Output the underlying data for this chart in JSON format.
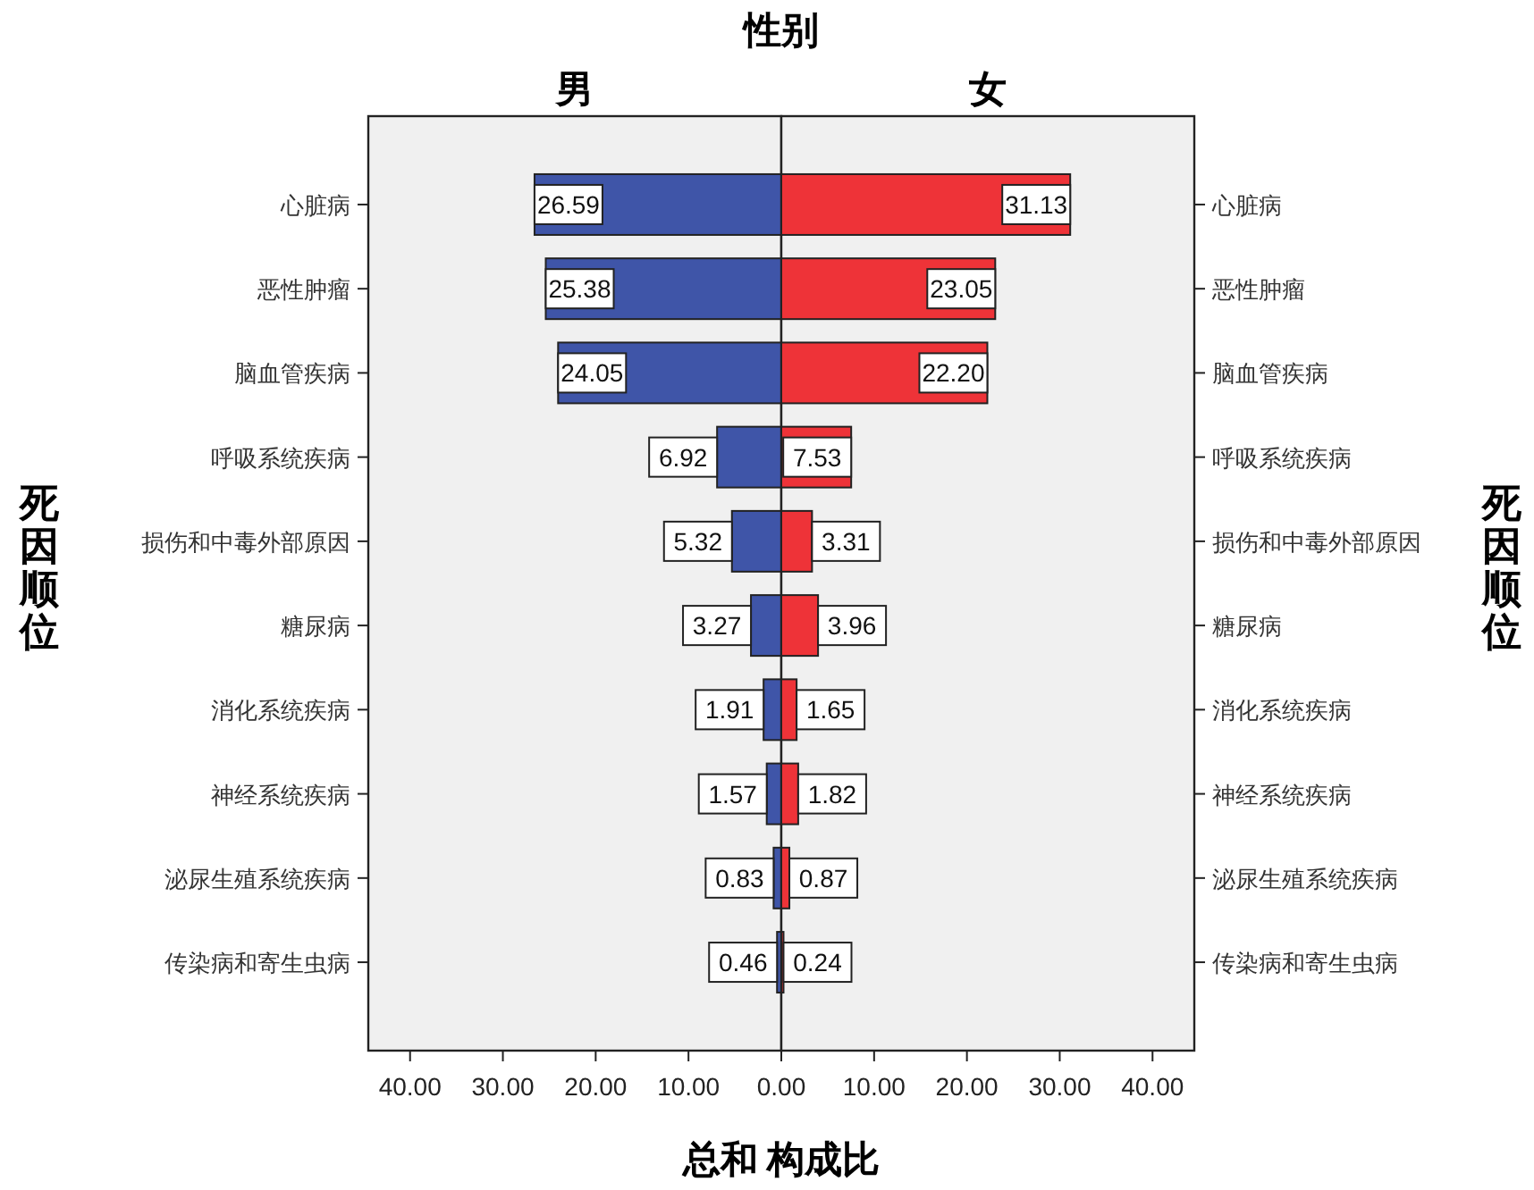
{
  "chart_data": [
    {
      "type": "bar",
      "orientation": "horizontal",
      "title": "男",
      "ylabel": "死因顺位",
      "xlabel": "总和 构成比",
      "annotations": [
        "性别"
      ],
      "categories": [
        "心脏病",
        "恶性肿瘤",
        "脑血管疾病",
        "呼吸系统疾病",
        "损伤和中毒外部原因",
        "糖尿病",
        "消化系统疾病",
        "神经系统疾病",
        "泌尿生殖系统疾病",
        "传染病和寄生虫病"
      ],
      "series": [
        {
          "color": "#3f55a8",
          "values": [
            26.59,
            25.38,
            24.05,
            6.92,
            5.32,
            3.27,
            1.91,
            1.57,
            0.83,
            0.46
          ],
          "value_labels": [
            "26.59",
            "25.38",
            "24.05",
            "6.92",
            "5.32",
            "3.27",
            "1.91",
            "1.57",
            "0.83",
            "0.46"
          ]
        }
      ],
      "xlim": [
        44.5,
        0
      ],
      "xticks": [
        {
          "value": 40,
          "label": "40.00"
        },
        {
          "value": 30,
          "label": "30.00"
        },
        {
          "value": 20,
          "label": "20.00"
        },
        {
          "value": 10,
          "label": "10.00"
        },
        {
          "value": 0,
          "label": "0.00"
        }
      ]
    },
    {
      "type": "bar",
      "orientation": "horizontal",
      "title": "女",
      "ylabel": "死因顺位",
      "categories": [
        "心脏病",
        "恶性肿瘤",
        "脑血管疾病",
        "呼吸系统疾病",
        "损伤和中毒外部原因",
        "糖尿病",
        "消化系统疾病",
        "神经系统疾病",
        "泌尿生殖系统疾病",
        "传染病和寄生虫病"
      ],
      "series": [
        {
          "color": "#ee3338",
          "values": [
            31.13,
            23.05,
            22.2,
            7.53,
            3.31,
            3.96,
            1.65,
            1.82,
            0.87,
            0.24
          ],
          "value_labels": [
            "31.13",
            "23.05",
            "22.20",
            "7.53",
            "3.31",
            "3.96",
            "1.65",
            "1.82",
            "0.87",
            "0.24"
          ]
        }
      ],
      "xlim": [
        0,
        44.5
      ],
      "xticks": [
        {
          "value": 0,
          "label": null
        },
        {
          "value": 10,
          "label": "10.00"
        },
        {
          "value": 20,
          "label": "20.00"
        },
        {
          "value": 30,
          "label": "30.00"
        },
        {
          "value": 40,
          "label": "40.00"
        }
      ]
    }
  ]
}
